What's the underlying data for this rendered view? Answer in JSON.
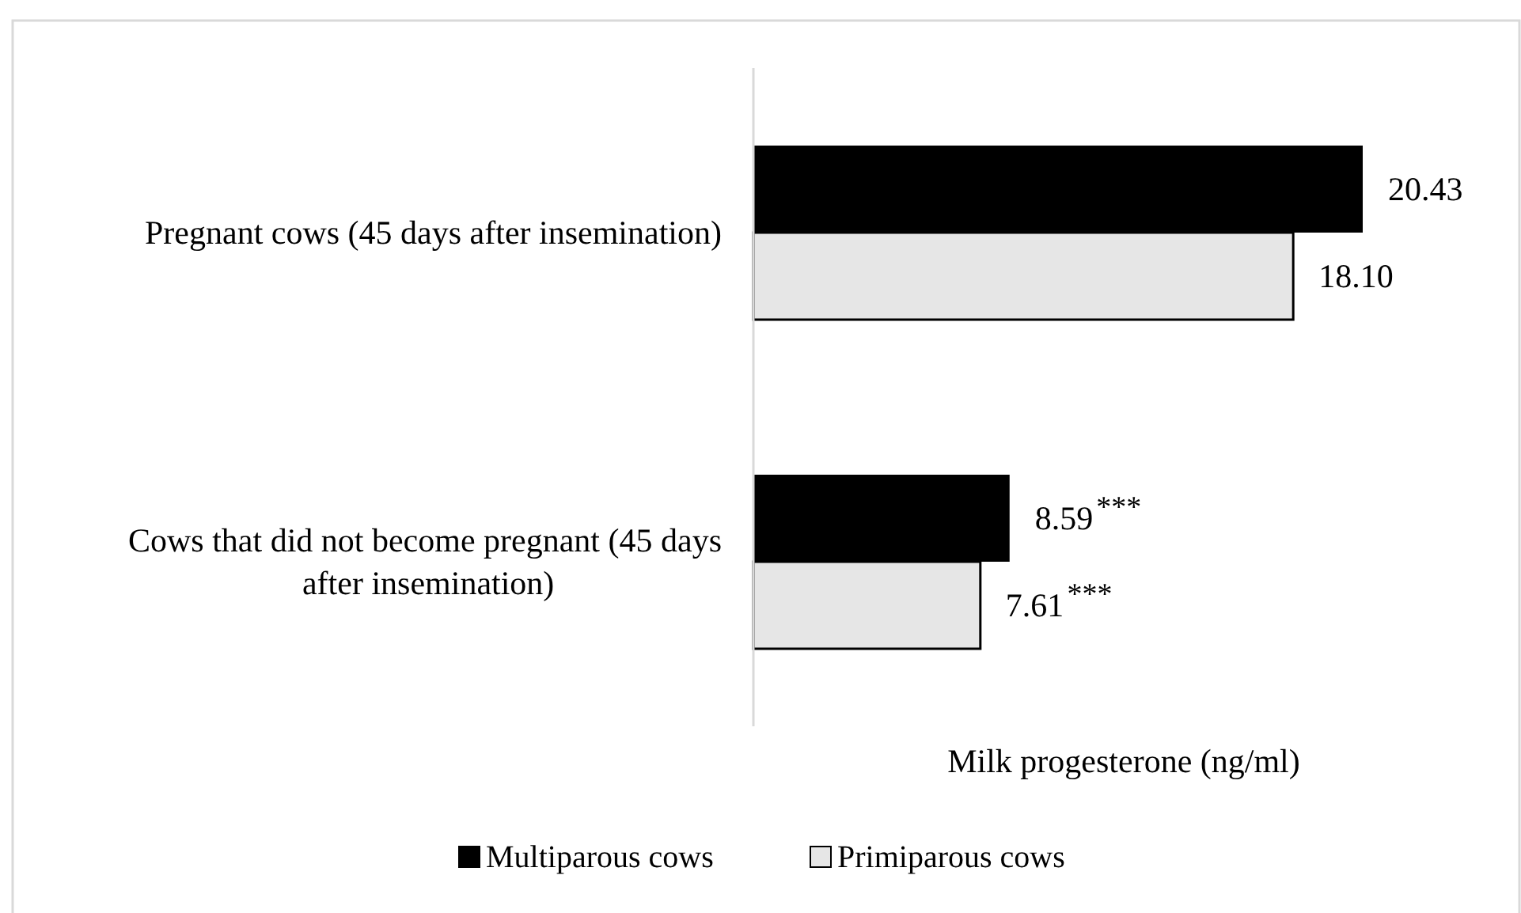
{
  "chart_data": {
    "type": "bar",
    "orientation": "horizontal",
    "xlabel": "Milk progesterone (ng/ml)",
    "categories": [
      "Pregnant cows (45 days after insemination)",
      "Cows that did not become pregnant (45 days after insemination)"
    ],
    "series": [
      {
        "name": "Multiparous cows",
        "color": "#000000",
        "values": [
          20.43,
          8.59
        ],
        "value_labels": [
          "20.43",
          "8.59"
        ]
      },
      {
        "name": "Primiparous cows",
        "color": "#e6e6e6",
        "values": [
          18.1,
          7.61
        ],
        "value_labels": [
          "18.10",
          "7.61"
        ]
      }
    ],
    "annotations": [
      "***",
      "***"
    ],
    "legend": "bottom"
  }
}
